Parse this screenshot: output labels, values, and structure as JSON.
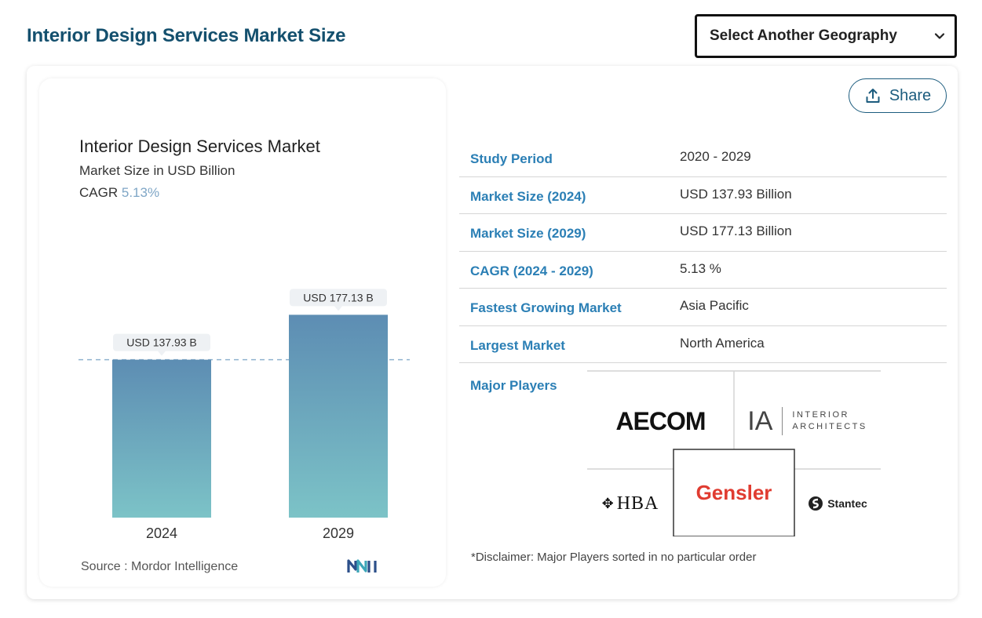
{
  "header": {
    "title": "Interior Design Services Market Size",
    "geography_select": "Select Another Geography"
  },
  "share_label": "Share",
  "chart": {
    "title": "Interior Design Services Market",
    "subtitle": "Market Size in USD Billion",
    "cagr_label": "CAGR",
    "cagr_value": "5.13%",
    "source_key": "Source :",
    "source_value": "Mordor Intelligence"
  },
  "chart_data": {
    "type": "bar",
    "title": "Interior Design Services Market",
    "ylabel": "Market Size in USD Billion",
    "categories": [
      "2024",
      "2029"
    ],
    "values": [
      137.93,
      177.13
    ],
    "data_labels": [
      "USD 137.93 B",
      "USD 177.13 B"
    ],
    "ylim": [
      0,
      200
    ],
    "colors": {
      "bar_top": "#5d8db3",
      "bar_bottom": "#7cc3c7",
      "label_bg": "#eef1f4",
      "reference_line": "#8fb2cf"
    }
  },
  "stats": [
    {
      "key": "Study Period",
      "value": "2020 - 2029"
    },
    {
      "key": "Market Size (2024)",
      "value": "USD 137.93 Billion"
    },
    {
      "key": "Market Size (2029)",
      "value": "USD 177.13 Billion"
    },
    {
      "key": "CAGR (2024 - 2029)",
      "value": "5.13 %"
    },
    {
      "key": "Fastest Growing Market",
      "value": "Asia Pacific"
    },
    {
      "key": "Largest Market",
      "value": "North America"
    }
  ],
  "players": {
    "label": "Major Players",
    "logos": {
      "aecom": "AECOM",
      "ia": "IA",
      "ia_line1": "INTERIOR",
      "ia_line2": "ARCHITECTS",
      "hba": "HBA",
      "gensler": "Gensler",
      "stantec": "Stantec"
    },
    "disclaimer": "*Disclaimer: Major Players sorted in no particular order"
  },
  "colors": {
    "title": "#14506e",
    "stat_key": "#2b7fb5",
    "gensler": "#e03c31"
  }
}
